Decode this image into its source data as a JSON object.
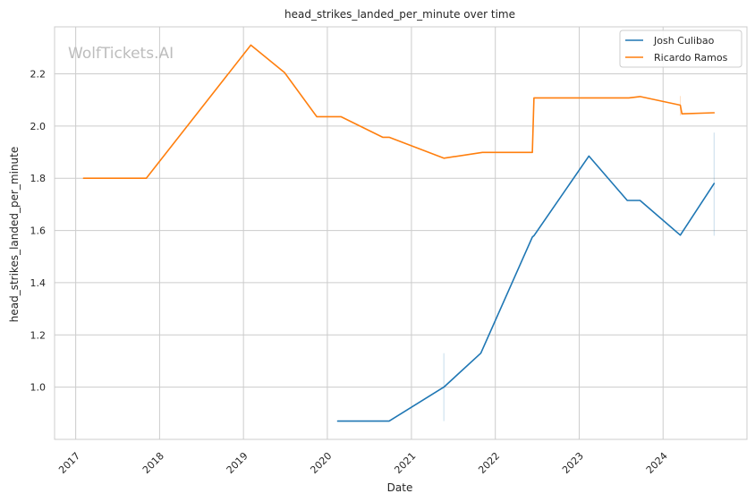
{
  "chart_data": {
    "type": "line",
    "title": "head_strikes_landed_per_minute over time",
    "xlabel": "Date",
    "ylabel": "head_strikes_landed_per_minute",
    "watermark": "WolfTickets.AI",
    "x_range": [
      "2016-10-01",
      "2024-12-31"
    ],
    "ylim": [
      0.8,
      2.38
    ],
    "x_ticks": [
      "2017",
      "2018",
      "2019",
      "2020",
      "2021",
      "2022",
      "2023",
      "2024"
    ],
    "y_ticks": [
      "1.0",
      "1.2",
      "1.4",
      "1.6",
      "1.8",
      "2.0",
      "2.2"
    ],
    "grid": true,
    "legend_position": "top-right",
    "series": [
      {
        "name": "Josh Culibao",
        "color": "#1f77b4",
        "points": [
          [
            "2020-02-15",
            0.87
          ],
          [
            "2020-09-26",
            0.87
          ],
          [
            "2021-05-22",
            1.0
          ],
          [
            "2021-10-30",
            1.13
          ],
          [
            "2022-06-11",
            1.575
          ],
          [
            "2022-06-18",
            1.58
          ],
          [
            "2023-02-12",
            1.885
          ],
          [
            "2023-07-29",
            1.715
          ],
          [
            "2023-09-23",
            1.715
          ],
          [
            "2024-03-16",
            1.582
          ],
          [
            "2024-08-10",
            1.78
          ]
        ]
      },
      {
        "name": "Ricardo Ramos",
        "color": "#ff7f0e",
        "points": [
          [
            "2017-02-04",
            1.8
          ],
          [
            "2017-11-04",
            1.8
          ],
          [
            "2019-02-02",
            2.31
          ],
          [
            "2019-06-29",
            2.205
          ],
          [
            "2019-11-16",
            2.036
          ],
          [
            "2020-02-29",
            2.036
          ],
          [
            "2020-08-29",
            1.957
          ],
          [
            "2020-09-26",
            1.957
          ],
          [
            "2021-05-22",
            1.877
          ],
          [
            "2021-11-06",
            1.899
          ],
          [
            "2022-06-11",
            1.899
          ],
          [
            "2022-06-18",
            2.108
          ],
          [
            "2023-08-05",
            2.108
          ],
          [
            "2023-09-23",
            2.113
          ],
          [
            "2024-03-16",
            2.08
          ],
          [
            "2024-03-23",
            2.047
          ],
          [
            "2024-08-10",
            2.051
          ]
        ]
      }
    ],
    "error_ticks": [
      {
        "x": "2021-05-22",
        "y_low": 0.87,
        "y_high": 1.13,
        "color": "#1f77b4"
      },
      {
        "x": "2024-08-10",
        "y_low": 1.58,
        "y_high": 1.975,
        "color": "#1f77b4"
      },
      {
        "x": "2024-03-16",
        "y_low": 2.04,
        "y_high": 2.115,
        "color": "#ff7f0e"
      }
    ]
  }
}
